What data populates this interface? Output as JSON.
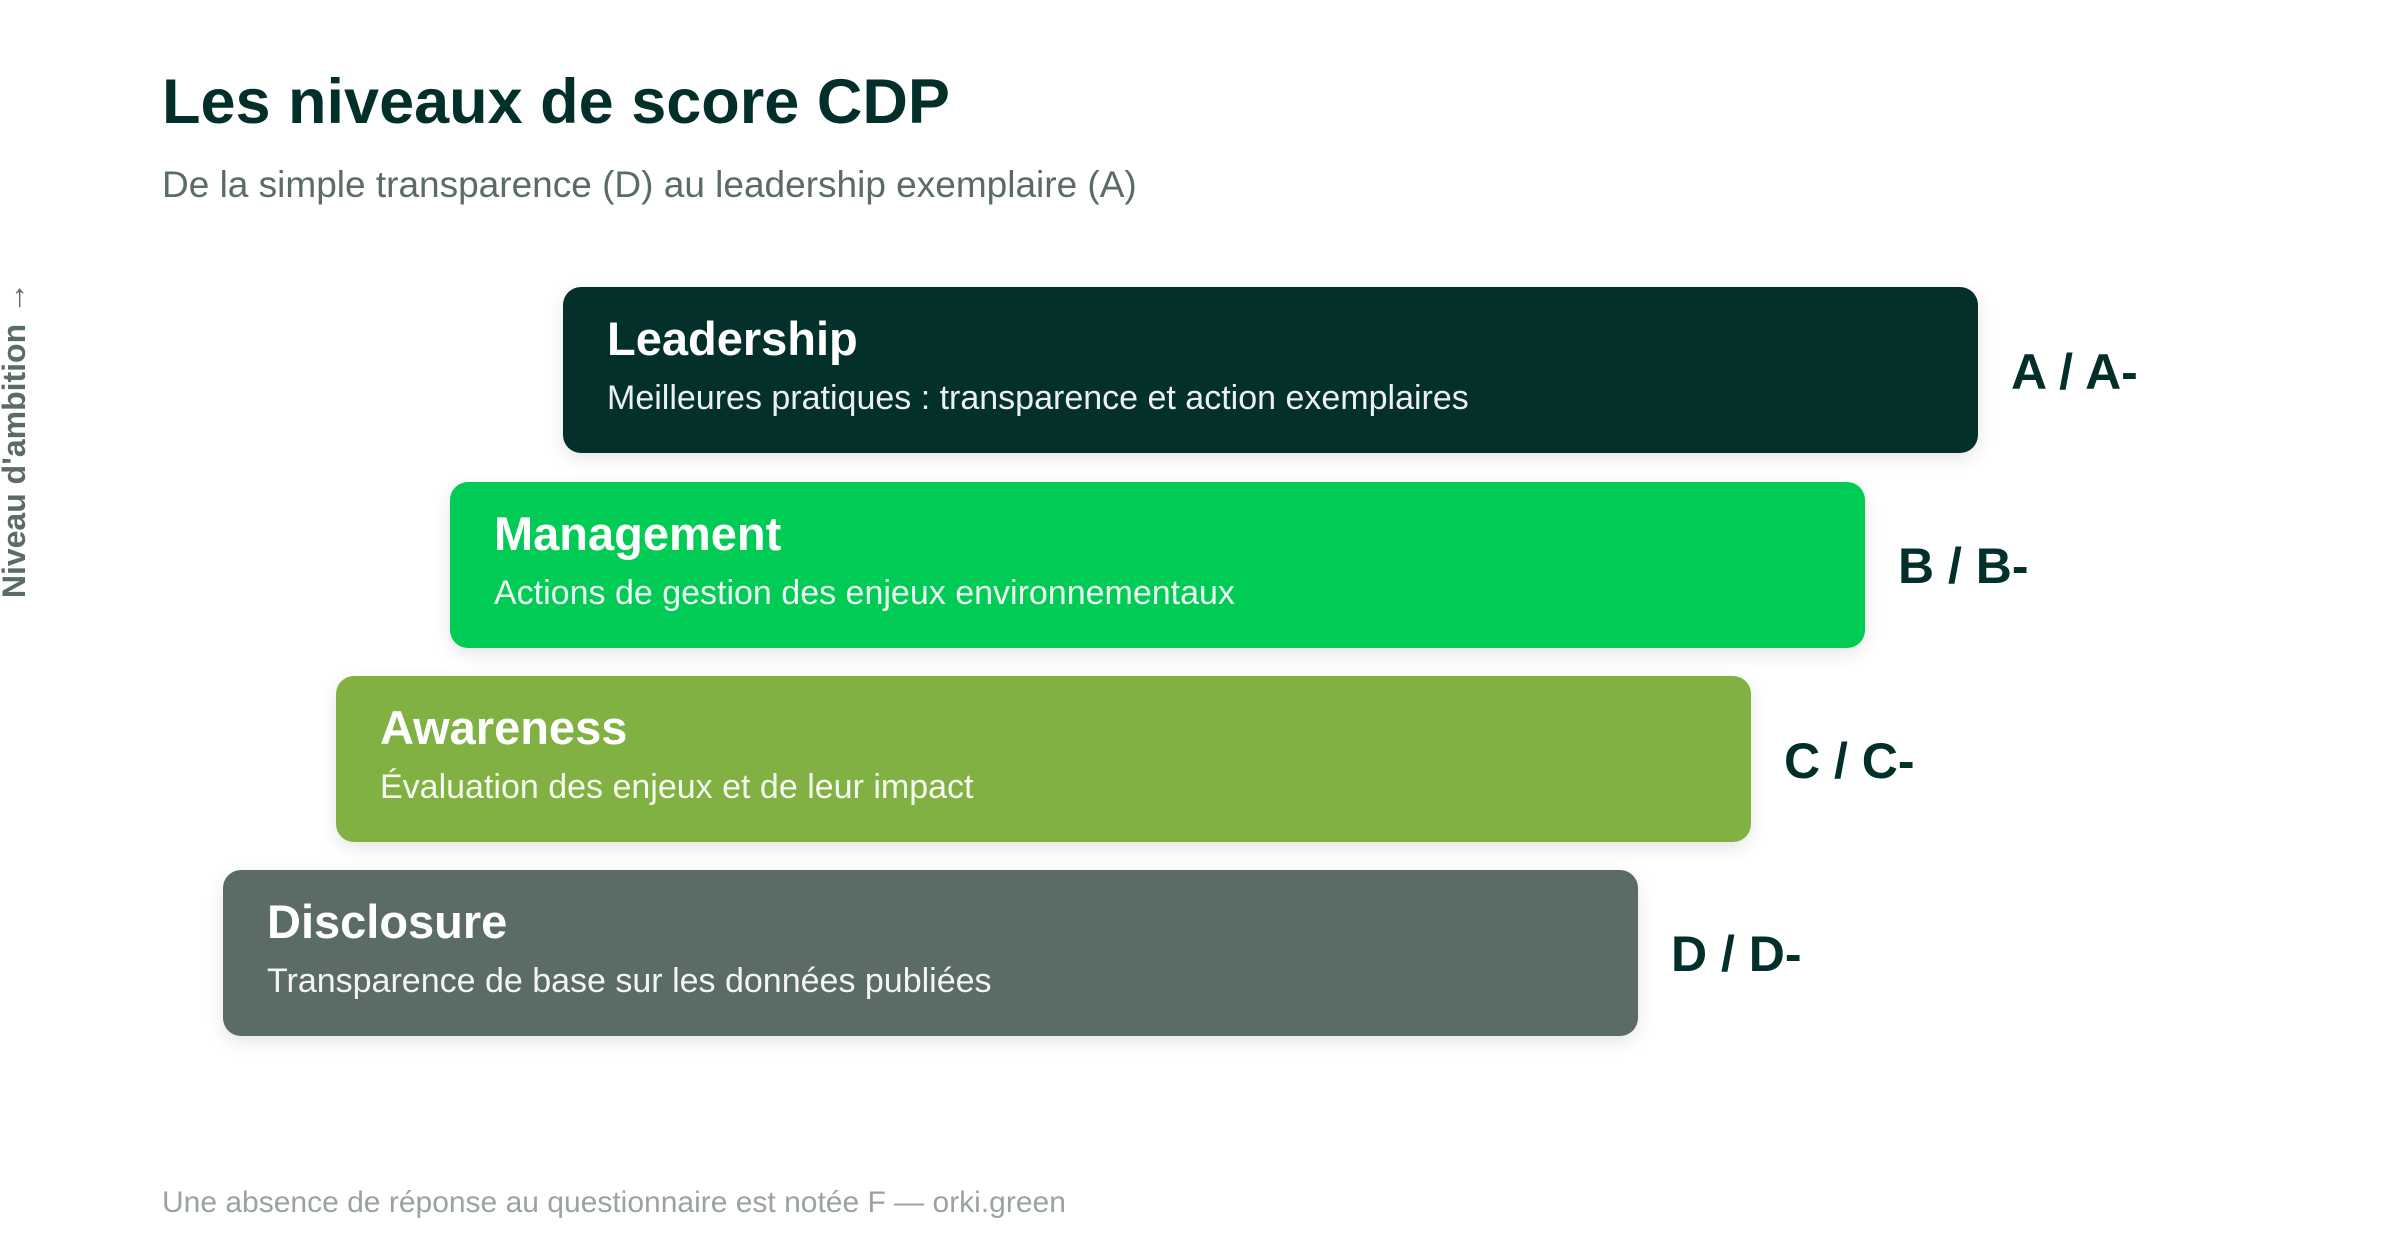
{
  "header": {
    "title": "Les niveaux de score CDP",
    "subtitle": "De la simple transparence (D) au leadership exemplaire (A)"
  },
  "axis": {
    "label": "Niveau d'ambition",
    "arrow": "→"
  },
  "tiers": [
    {
      "name": "Leadership",
      "description": "Meilleures pratiques : transparence et action exemplaires",
      "grade": "A / A-",
      "color": "#03302b"
    },
    {
      "name": "Management",
      "description": "Actions de gestion des enjeux environnementaux",
      "grade": "B / B-",
      "color": "#00cc55"
    },
    {
      "name": "Awareness",
      "description": "Évaluation des enjeux et de leur impact",
      "grade": "C / C-",
      "color": "#80b142"
    },
    {
      "name": "Disclosure",
      "description": "Transparence de base sur les données publiées",
      "grade": "D / D-",
      "color": "#5b6b67"
    }
  ],
  "footnote": "Une absence de réponse au questionnaire est notée F — orki.green"
}
